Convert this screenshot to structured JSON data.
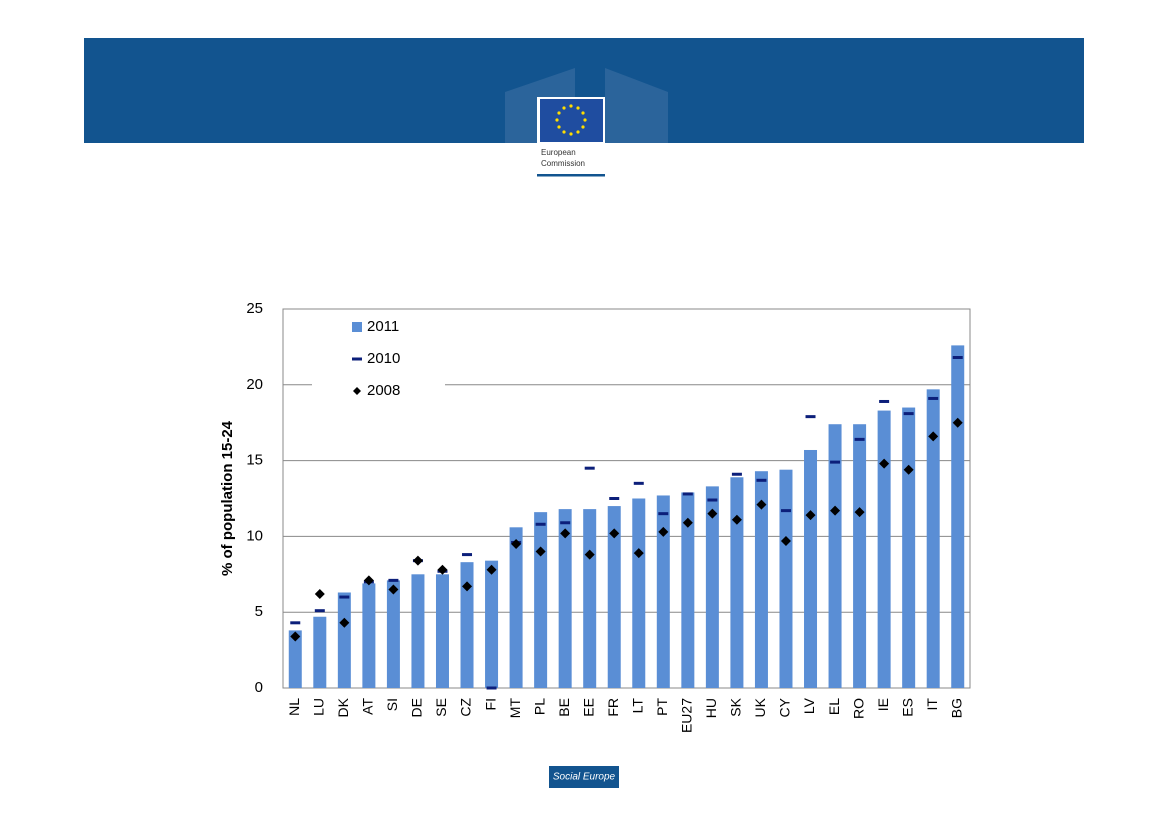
{
  "header": {
    "logo_lines": [
      "European",
      "Commission"
    ]
  },
  "footer": {
    "text": "Social Europe"
  },
  "chart_data": {
    "type": "bar",
    "y_label": "% of population 15-24",
    "categories": [
      "NL",
      "LU",
      "DK",
      "AT",
      "SI",
      "DE",
      "SE",
      "CZ",
      "FI",
      "MT",
      "PL",
      "BE",
      "EE",
      "FR",
      "LT",
      "PT",
      "EU27",
      "HU",
      "SK",
      "UK",
      "CY",
      "LV",
      "EL",
      "RO",
      "IE",
      "ES",
      "IT",
      "BG"
    ],
    "series": [
      {
        "name": "2011",
        "color": "#5a8ed5",
        "marker": "bar",
        "values": [
          3.8,
          4.7,
          6.3,
          6.9,
          7.1,
          7.5,
          7.5,
          8.3,
          8.4,
          10.6,
          11.6,
          11.8,
          11.8,
          12.0,
          12.5,
          12.7,
          12.9,
          13.3,
          13.9,
          14.3,
          14.4,
          15.7,
          17.4,
          17.4,
          18.3,
          18.5,
          19.7,
          22.6
        ]
      },
      {
        "name": "2010",
        "color": "#0c1f7a",
        "marker": "dash",
        "values": [
          4.3,
          5.1,
          6.0,
          7.0,
          7.1,
          8.4,
          7.7,
          8.8,
          0,
          9.6,
          10.8,
          10.9,
          14.5,
          12.5,
          13.5,
          11.5,
          12.8,
          12.4,
          14.1,
          13.7,
          11.7,
          17.9,
          14.9,
          16.4,
          18.9,
          18.1,
          19.1,
          21.8
        ]
      },
      {
        "name": "2008",
        "color": "#000000",
        "marker": "diamond",
        "values": [
          3.4,
          6.2,
          4.3,
          7.1,
          6.5,
          8.4,
          7.8,
          6.7,
          7.8,
          9.5,
          9.0,
          10.2,
          8.8,
          10.2,
          8.9,
          10.3,
          10.9,
          11.5,
          11.1,
          12.1,
          9.7,
          11.4,
          11.7,
          11.6,
          14.8,
          14.4,
          16.6,
          17.5
        ]
      }
    ],
    "ylim": [
      0,
      25
    ],
    "yticks": [
      0,
      5,
      10,
      15,
      20,
      25
    ],
    "grid": true,
    "legend": "top-left"
  }
}
